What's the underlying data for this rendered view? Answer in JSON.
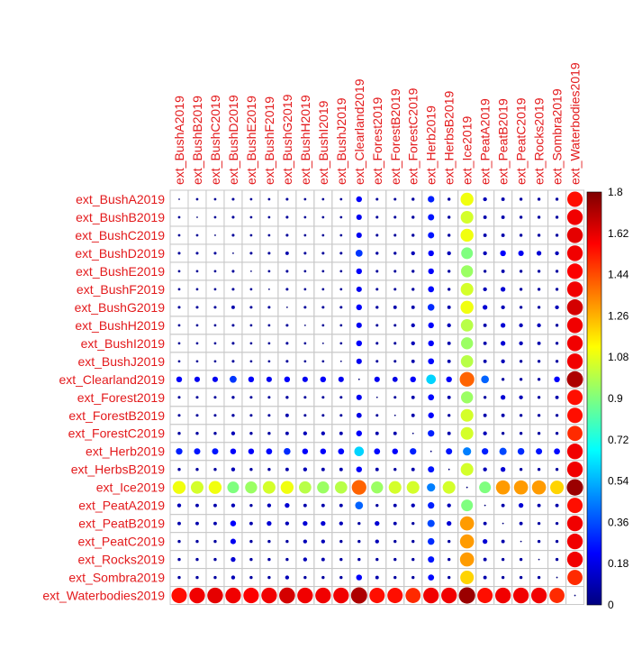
{
  "chart_data": {
    "type": "heatmap",
    "labels": [
      "ext_BushA2019",
      "ext_BushB2019",
      "ext_BushC2019",
      "ext_BushD2019",
      "ext_BushE2019",
      "ext_BushF2019",
      "ext_BushG2019",
      "ext_BushH2019",
      "ext_BushI2019",
      "ext_BushJ2019",
      "ext_Clearland2019",
      "ext_Forest2019",
      "ext_ForestB2019",
      "ext_ForestC2019",
      "ext_Herb2019",
      "ext_HerbsB2019",
      "ext_Ice2019",
      "ext_PeatA2019",
      "ext_PeatB2019",
      "ext_PeatC2019",
      "ext_Rocks2019",
      "ext_Sombra2019",
      "ext_Waterbodies2019"
    ],
    "label_color": "#e31a1c",
    "legend_ticks": [
      "0",
      "0.18",
      "0.36",
      "0.54",
      "0.72",
      "0.9",
      "1.08",
      "1.26",
      "1.44",
      "1.62",
      "1.8"
    ],
    "color_scale": {
      "min": 0,
      "max": 1.8,
      "colors": [
        "#00007f",
        "#0000ff",
        "#007fff",
        "#00ffff",
        "#7fff7f",
        "#ffff00",
        "#ff7f00",
        "#ff0000",
        "#7f0000"
      ]
    },
    "values": [
      [
        0,
        0.04,
        0.04,
        0.05,
        0.04,
        0.04,
        0.05,
        0.04,
        0.04,
        0.04,
        0.22,
        0.05,
        0.05,
        0.06,
        0.28,
        0.06,
        1.1,
        0.1,
        0.08,
        0.06,
        0.06,
        0.06,
        1.55
      ],
      [
        0.04,
        0,
        0.04,
        0.05,
        0.04,
        0.04,
        0.05,
        0.04,
        0.04,
        0.04,
        0.2,
        0.05,
        0.05,
        0.06,
        0.26,
        0.06,
        1.05,
        0.08,
        0.08,
        0.06,
        0.06,
        0.06,
        1.6
      ],
      [
        0.04,
        0.04,
        0,
        0.05,
        0.04,
        0.04,
        0.05,
        0.04,
        0.04,
        0.04,
        0.2,
        0.05,
        0.05,
        0.06,
        0.26,
        0.06,
        1.1,
        0.08,
        0.08,
        0.06,
        0.06,
        0.06,
        1.62
      ],
      [
        0.05,
        0.05,
        0.05,
        0,
        0.05,
        0.05,
        0.08,
        0.05,
        0.05,
        0.05,
        0.32,
        0.06,
        0.06,
        0.1,
        0.22,
        0.1,
        0.9,
        0.1,
        0.22,
        0.2,
        0.15,
        0.1,
        1.6
      ],
      [
        0.04,
        0.04,
        0.04,
        0.05,
        0,
        0.04,
        0.05,
        0.04,
        0.04,
        0.04,
        0.22,
        0.05,
        0.05,
        0.06,
        0.22,
        0.06,
        0.95,
        0.06,
        0.08,
        0.06,
        0.06,
        0.06,
        1.58
      ],
      [
        0.04,
        0.04,
        0.04,
        0.05,
        0.04,
        0,
        0.05,
        0.04,
        0.04,
        0.04,
        0.2,
        0.05,
        0.05,
        0.06,
        0.24,
        0.06,
        1.05,
        0.1,
        0.15,
        0.06,
        0.06,
        0.06,
        1.6
      ],
      [
        0.05,
        0.05,
        0.05,
        0.08,
        0.05,
        0.05,
        0,
        0.05,
        0.05,
        0.05,
        0.22,
        0.06,
        0.08,
        0.08,
        0.3,
        0.08,
        1.1,
        0.15,
        0.1,
        0.06,
        0.06,
        0.1,
        1.65
      ],
      [
        0.04,
        0.04,
        0.04,
        0.05,
        0.04,
        0.04,
        0.05,
        0,
        0.04,
        0.04,
        0.2,
        0.05,
        0.05,
        0.1,
        0.22,
        0.1,
        1.0,
        0.08,
        0.15,
        0.1,
        0.1,
        0.06,
        1.6
      ],
      [
        0.04,
        0.04,
        0.04,
        0.05,
        0.04,
        0.04,
        0.05,
        0.04,
        0,
        0.04,
        0.22,
        0.05,
        0.05,
        0.1,
        0.22,
        0.08,
        0.95,
        0.08,
        0.15,
        0.1,
        0.08,
        0.06,
        1.6
      ],
      [
        0.04,
        0.04,
        0.04,
        0.05,
        0.04,
        0.04,
        0.05,
        0.04,
        0.04,
        0,
        0.2,
        0.05,
        0.05,
        0.08,
        0.24,
        0.08,
        1.0,
        0.08,
        0.1,
        0.06,
        0.06,
        0.06,
        1.6
      ],
      [
        0.22,
        0.2,
        0.2,
        0.32,
        0.22,
        0.2,
        0.22,
        0.2,
        0.22,
        0.2,
        0,
        0.2,
        0.18,
        0.22,
        0.6,
        0.22,
        1.4,
        0.4,
        0.06,
        0.06,
        0.06,
        0.22,
        1.72
      ],
      [
        0.05,
        0.05,
        0.05,
        0.06,
        0.05,
        0.05,
        0.06,
        0.05,
        0.05,
        0.05,
        0.2,
        0,
        0.05,
        0.08,
        0.24,
        0.08,
        0.95,
        0.06,
        0.15,
        0.1,
        0.06,
        0.08,
        1.55
      ],
      [
        0.05,
        0.05,
        0.05,
        0.06,
        0.05,
        0.05,
        0.08,
        0.05,
        0.05,
        0.05,
        0.18,
        0.05,
        0,
        0.08,
        0.22,
        0.06,
        1.05,
        0.08,
        0.08,
        0.06,
        0.06,
        0.06,
        1.55
      ],
      [
        0.06,
        0.06,
        0.06,
        0.1,
        0.06,
        0.06,
        0.08,
        0.1,
        0.1,
        0.08,
        0.22,
        0.08,
        0.08,
        0,
        0.28,
        0.08,
        1.05,
        0.1,
        0.06,
        0.06,
        0.06,
        0.06,
        1.5
      ],
      [
        0.28,
        0.26,
        0.26,
        0.22,
        0.22,
        0.24,
        0.3,
        0.22,
        0.22,
        0.24,
        0.6,
        0.24,
        0.22,
        0.28,
        0,
        0.26,
        0.45,
        0.28,
        0.35,
        0.3,
        0.26,
        0.24,
        1.6
      ],
      [
        0.06,
        0.06,
        0.06,
        0.1,
        0.06,
        0.06,
        0.08,
        0.1,
        0.08,
        0.08,
        0.22,
        0.08,
        0.06,
        0.08,
        0.26,
        0,
        1.05,
        0.1,
        0.15,
        0.06,
        0.06,
        0.06,
        1.6
      ],
      [
        1.1,
        1.05,
        1.1,
        0.9,
        0.95,
        1.05,
        1.1,
        1.0,
        0.95,
        1.0,
        1.4,
        0.95,
        1.05,
        1.05,
        0.45,
        1.05,
        0,
        0.9,
        1.3,
        1.3,
        1.3,
        1.2,
        1.75
      ],
      [
        0.1,
        0.08,
        0.08,
        0.1,
        0.06,
        0.1,
        0.15,
        0.08,
        0.08,
        0.08,
        0.4,
        0.06,
        0.08,
        0.1,
        0.28,
        0.1,
        0.9,
        0,
        0.08,
        0.15,
        0.08,
        0.08,
        1.55
      ],
      [
        0.08,
        0.08,
        0.08,
        0.22,
        0.08,
        0.15,
        0.1,
        0.15,
        0.15,
        0.1,
        0.06,
        0.15,
        0.08,
        0.06,
        0.35,
        0.15,
        1.3,
        0.08,
        0,
        0.08,
        0.06,
        0.06,
        1.6
      ],
      [
        0.06,
        0.06,
        0.06,
        0.2,
        0.06,
        0.06,
        0.06,
        0.1,
        0.1,
        0.06,
        0.06,
        0.1,
        0.06,
        0.06,
        0.3,
        0.06,
        1.3,
        0.15,
        0.08,
        0,
        0.06,
        0.06,
        1.6
      ],
      [
        0.06,
        0.06,
        0.06,
        0.15,
        0.06,
        0.06,
        0.06,
        0.1,
        0.08,
        0.06,
        0.06,
        0.06,
        0.06,
        0.06,
        0.26,
        0.06,
        1.3,
        0.08,
        0.06,
        0.06,
        0,
        0.06,
        1.6
      ],
      [
        0.06,
        0.06,
        0.06,
        0.1,
        0.06,
        0.06,
        0.1,
        0.06,
        0.06,
        0.06,
        0.22,
        0.08,
        0.06,
        0.06,
        0.24,
        0.06,
        1.2,
        0.08,
        0.06,
        0.06,
        0.06,
        0,
        1.5
      ],
      [
        1.55,
        1.6,
        1.62,
        1.6,
        1.58,
        1.6,
        1.65,
        1.6,
        1.6,
        1.6,
        1.72,
        1.55,
        1.55,
        1.5,
        1.6,
        1.6,
        1.75,
        1.55,
        1.6,
        1.6,
        1.6,
        1.5,
        0
      ]
    ]
  }
}
